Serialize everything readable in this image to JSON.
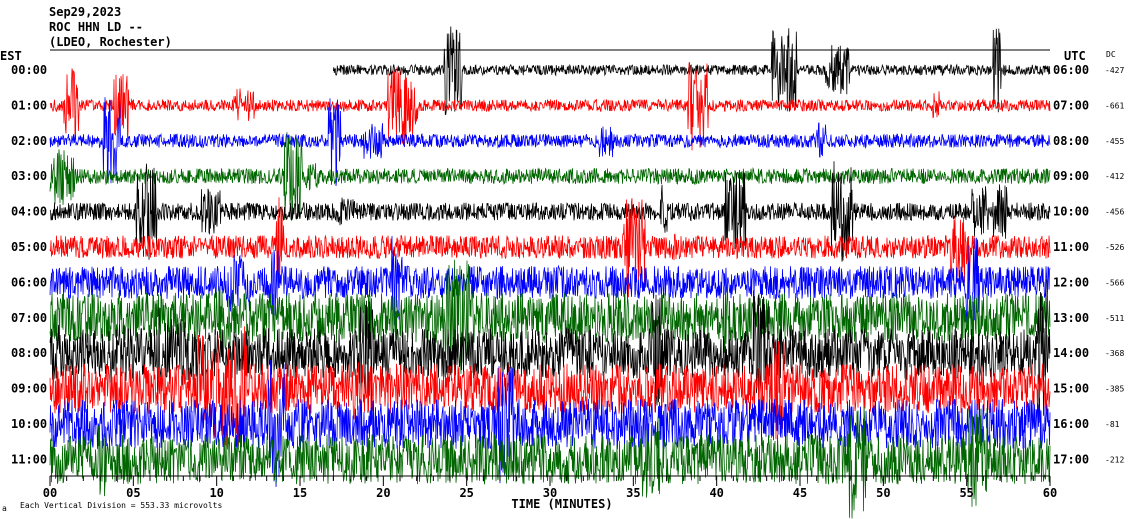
{
  "header": {
    "date": "Sep29,2023",
    "station": "ROC HHN LD --",
    "network": "(LDEO, Rochester)"
  },
  "left_axis_title": "EST",
  "right_axis_title": "UTC",
  "dc_title": "DC",
  "footer": {
    "scale_note": "Each Vertical Division = 553.33 microvolts",
    "corner_mark": "a"
  },
  "colors": {
    "black": "#000000",
    "red": "#ff0000",
    "blue": "#0000ff",
    "green": "#006600"
  },
  "chart_data": {
    "type": "line",
    "subtype": "helicorder",
    "xlabel": "TIME (MINUTES)",
    "xlim": [
      0,
      60
    ],
    "x_ticks": [
      "00",
      "05",
      "10",
      "15",
      "20",
      "25",
      "30",
      "35",
      "40",
      "45",
      "50",
      "55",
      "60"
    ],
    "grid": false,
    "color_cycle": [
      "black",
      "red",
      "blue",
      "green"
    ],
    "first_trace_start_minute": 17,
    "rows": [
      {
        "est": "00:00",
        "utc": "06:00",
        "dc": "-427",
        "activity": 0.35
      },
      {
        "est": "01:00",
        "utc": "07:00",
        "dc": "-661",
        "activity": 0.4
      },
      {
        "est": "02:00",
        "utc": "08:00",
        "dc": "-455",
        "activity": 0.45
      },
      {
        "est": "03:00",
        "utc": "09:00",
        "dc": "-412",
        "activity": 0.5
      },
      {
        "est": "04:00",
        "utc": "10:00",
        "dc": "-456",
        "activity": 0.55
      },
      {
        "est": "05:00",
        "utc": "11:00",
        "dc": "-526",
        "activity": 0.65
      },
      {
        "est": "06:00",
        "utc": "12:00",
        "dc": "-566",
        "activity": 0.8
      },
      {
        "est": "07:00",
        "utc": "13:00",
        "dc": "-511",
        "activity": 1.0
      },
      {
        "est": "08:00",
        "utc": "14:00",
        "dc": "-368",
        "activity": 1.0
      },
      {
        "est": "09:00",
        "utc": "15:00",
        "dc": "-385",
        "activity": 1.0
      },
      {
        "est": "10:00",
        "utc": "16:00",
        "dc": "-81",
        "activity": 1.0
      },
      {
        "est": "11:00",
        "utc": "17:00",
        "dc": "-212",
        "activity": 1.0
      }
    ]
  }
}
